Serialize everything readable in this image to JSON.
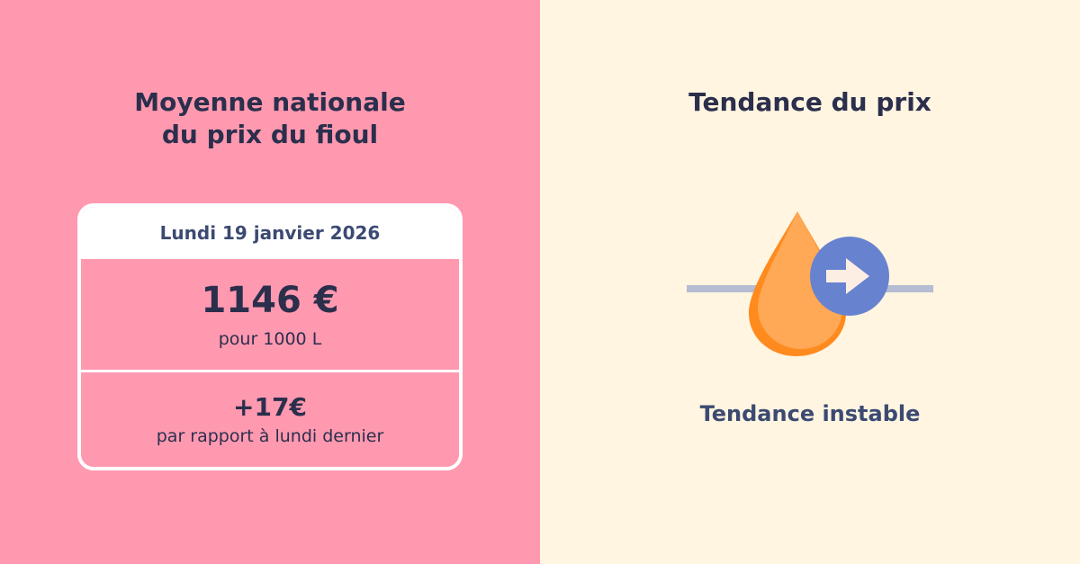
{
  "left": {
    "title_line1": "Moyenne nationale",
    "title_line2": "du prix du fioul",
    "card": {
      "date": "Lundi 19 janvier 2026",
      "price": "1146 €",
      "price_unit": "pour 1000 L",
      "change": "+17€",
      "change_text": "par rapport à lundi dernier"
    }
  },
  "right": {
    "title": "Tendance du prix",
    "trend_label": "Tendance instable",
    "icon": "oil-drop-arrow-right-icon"
  },
  "colors": {
    "left_background": "#ff99b0",
    "right_background": "#fff5e1",
    "text_dark": "#2b2f4c",
    "text_blue": "#3c4a72",
    "drop_orange": "#ff8a1e",
    "drop_light": "#ffa855",
    "arrow_circle": "#6783cf",
    "line_gray": "#b5bcd4"
  }
}
